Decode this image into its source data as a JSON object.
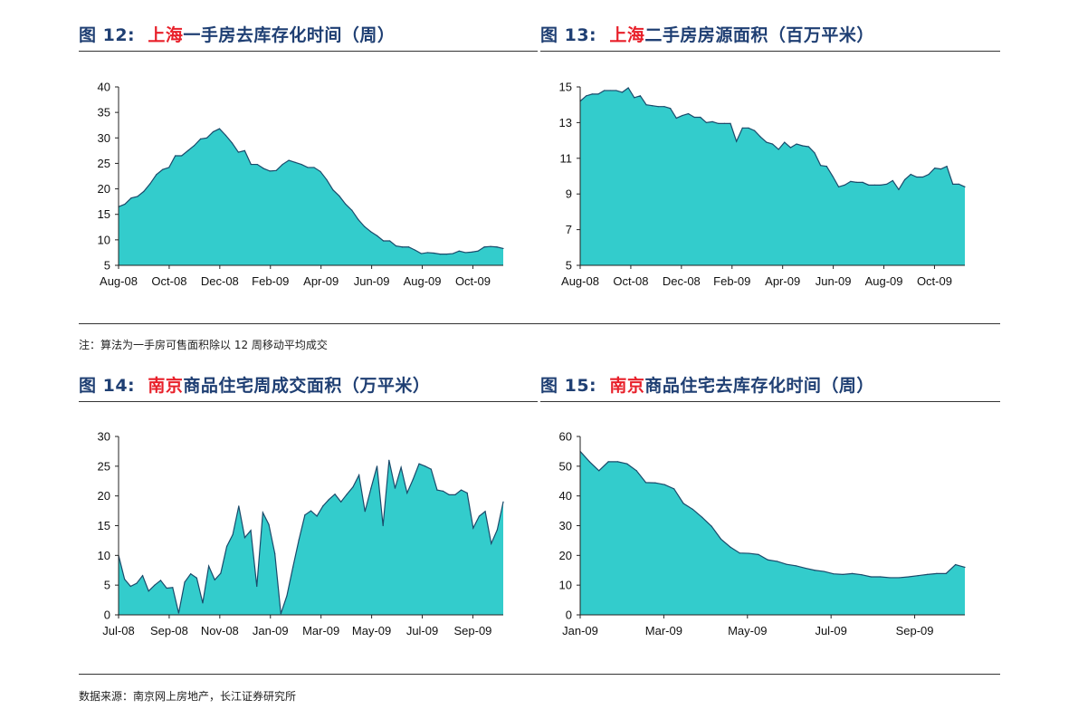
{
  "colors": {
    "fill": "#33cccc",
    "stroke": "#1a4a6a",
    "title": "#1f3f73",
    "city": "#e8202a"
  },
  "notes": {
    "top": "注：算法为一手房可售面积除以 12 周移动平均成交",
    "bottom": "数据来源：南京网上房地产，长江证券研究所"
  },
  "figures": [
    {
      "prefix": "图 12:",
      "city": "上海",
      "rest": "一手房去库存化时间（周）"
    },
    {
      "prefix": "图 13:",
      "city": "上海",
      "rest": "二手房房源面积（百万平米）"
    },
    {
      "prefix": "图 14:",
      "city": "南京",
      "rest": "商品住宅周成交面积（万平米）"
    },
    {
      "prefix": "图 15:",
      "city": "南京",
      "rest": "商品住宅去库存化时间（周）"
    }
  ],
  "chart_data": [
    {
      "type": "area",
      "title": "图 12: 上海一手房去库存化时间（周）",
      "ylim": [
        5,
        40
      ],
      "yticks": [
        5,
        10,
        15,
        20,
        25,
        30,
        35,
        40
      ],
      "xticks": [
        "Aug-08",
        "Oct-08",
        "Dec-08",
        "Feb-09",
        "Apr-09",
        "Jun-09",
        "Aug-09",
        "Oct-09"
      ],
      "values": [
        16.5,
        17,
        18.2,
        18.5,
        19.5,
        21,
        22.8,
        23.8,
        24.2,
        26.5,
        26.5,
        27.5,
        28.5,
        29.8,
        30,
        31.2,
        31.8,
        30.5,
        29,
        27.2,
        27.5,
        24.8,
        24.8,
        24,
        23.5,
        23.6,
        24.8,
        25.6,
        25.2,
        24.8,
        24.2,
        24.2,
        23.4,
        21.8,
        19.8,
        18.6,
        17,
        15.8,
        14,
        12.6,
        11.6,
        10.8,
        9.8,
        9.8,
        8.8,
        8.6,
        8.6,
        8,
        7.3,
        7.5,
        7.4,
        7.2,
        7.2,
        7.3,
        7.8,
        7.5,
        7.6,
        7.8,
        8.6,
        8.7,
        8.6,
        8.3
      ]
    },
    {
      "type": "area",
      "title": "图 13: 上海二手房房源面积（百万平米）",
      "ylim": [
        5,
        15
      ],
      "yticks": [
        5,
        7,
        9,
        11,
        13,
        15
      ],
      "xticks": [
        "Aug-08",
        "Oct-08",
        "Dec-08",
        "Feb-09",
        "Apr-09",
        "Jun-09",
        "Aug-09",
        "Oct-09"
      ],
      "values": [
        14.2,
        14.5,
        14.6,
        14.6,
        14.8,
        14.8,
        14.8,
        14.7,
        14.95,
        14.4,
        14.5,
        14,
        13.95,
        13.9,
        13.9,
        13.8,
        13.25,
        13.4,
        13.5,
        13.3,
        13.3,
        13,
        13.05,
        12.95,
        12.95,
        12.95,
        11.95,
        12.7,
        12.7,
        12.55,
        12.2,
        11.9,
        11.8,
        11.5,
        11.9,
        11.6,
        11.8,
        11.7,
        11.65,
        11.3,
        10.6,
        10.55,
        10,
        9.4,
        9.5,
        9.7,
        9.65,
        9.65,
        9.5,
        9.5,
        9.5,
        9.55,
        9.75,
        9.25,
        9.8,
        10.1,
        9.95,
        9.95,
        10.1,
        10.45,
        10.4,
        10.55,
        9.55,
        9.55,
        9.4
      ]
    },
    {
      "type": "area",
      "title": "图 14: 南京商品住宅周成交面积（万平米）",
      "ylim": [
        0,
        30
      ],
      "yticks": [
        0,
        5,
        10,
        15,
        20,
        25,
        30
      ],
      "xticks": [
        "Jul-08",
        "Sep-08",
        "Nov-08",
        "Jan-09",
        "Mar-09",
        "May-09",
        "Jul-09",
        "Sep-09"
      ],
      "values": [
        10,
        6,
        4.8,
        5.3,
        6.6,
        4,
        5,
        5.8,
        4.5,
        4.6,
        0.3,
        5.5,
        6.9,
        6.2,
        2,
        8.2,
        5.9,
        7,
        11.5,
        13.5,
        18.3,
        13,
        14.2,
        4.8,
        17.2,
        15.2,
        10.3,
        0.2,
        3.2,
        8,
        12.6,
        16.8,
        17.5,
        16.6,
        18.3,
        19.4,
        20.3,
        19,
        20.3,
        21.5,
        23.5,
        17.4,
        21.3,
        25,
        15,
        26,
        21.3,
        24.8,
        20.5,
        22.8,
        25.4,
        25,
        24.5,
        21,
        20.8,
        20.2,
        20.2,
        21,
        20.5,
        14.6,
        16.6,
        17.4,
        12,
        14.3,
        19
      ]
    },
    {
      "type": "area",
      "title": "图 15: 南京商品住宅去库存化时间（周）",
      "ylim": [
        0,
        60
      ],
      "yticks": [
        0,
        10,
        20,
        30,
        40,
        50,
        60
      ],
      "xticks": [
        "Jan-09",
        "Mar-09",
        "May-09",
        "Jul-09",
        "Sep-09"
      ],
      "values": [
        55,
        51.5,
        48.5,
        51.5,
        51.5,
        50.8,
        48.5,
        44.5,
        44.4,
        43.8,
        42.4,
        37.5,
        35.5,
        32.8,
        29.8,
        25.5,
        22.8,
        20.8,
        20.7,
        20.3,
        18.5,
        18,
        17,
        16.5,
        15.7,
        15,
        14.6,
        13.8,
        13.6,
        13.9,
        13.5,
        12.8,
        12.8,
        12.5,
        12.5,
        12.8,
        13.2,
        13.6,
        13.9,
        13.9,
        16.9,
        16
      ]
    }
  ]
}
